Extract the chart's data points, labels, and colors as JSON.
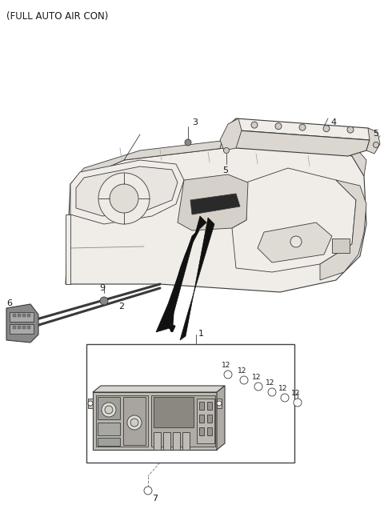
{
  "title": "(FULL AUTO AIR CON)",
  "bg_color": "#ffffff",
  "text_color": "#1a1a1a",
  "title_fontsize": 8.5,
  "label_fontsize": 8,
  "small_fontsize": 7,
  "figsize": [
    4.8,
    6.56
  ],
  "dpi": 100,
  "line_color": "#3a3a3a",
  "fill_light": "#f0ede8",
  "fill_mid": "#dbd7d0",
  "fill_dark": "#c8c3bc"
}
